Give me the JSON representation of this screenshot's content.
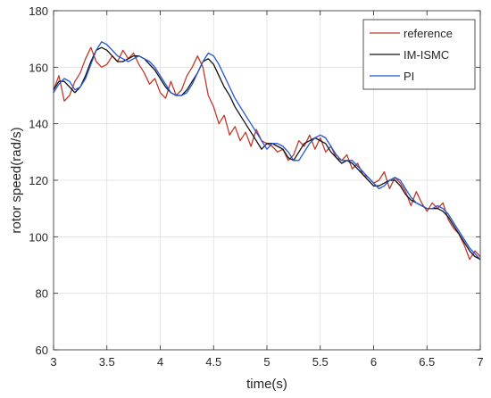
{
  "chart_data": {
    "type": "line",
    "xlabel": "time(s)",
    "ylabel": "rotor speed(rad/s)",
    "xlim": [
      3,
      7
    ],
    "ylim": [
      60,
      180
    ],
    "xticks": [
      3,
      3.5,
      4,
      4.5,
      5,
      5.5,
      6,
      6.5,
      7
    ],
    "yticks": [
      60,
      80,
      100,
      120,
      140,
      160,
      180
    ],
    "grid": true,
    "legend_position": "top-right",
    "series": [
      {
        "name": "reference",
        "color": "#c0392b",
        "x": [
          3.0,
          3.05,
          3.1,
          3.15,
          3.2,
          3.25,
          3.3,
          3.35,
          3.4,
          3.45,
          3.5,
          3.55,
          3.6,
          3.65,
          3.7,
          3.75,
          3.8,
          3.85,
          3.9,
          3.95,
          4.0,
          4.05,
          4.1,
          4.15,
          4.2,
          4.25,
          4.3,
          4.35,
          4.4,
          4.45,
          4.5,
          4.55,
          4.6,
          4.65,
          4.7,
          4.75,
          4.8,
          4.85,
          4.9,
          4.95,
          5.0,
          5.05,
          5.1,
          5.15,
          5.2,
          5.25,
          5.3,
          5.35,
          5.4,
          5.45,
          5.5,
          5.55,
          5.6,
          5.65,
          5.7,
          5.75,
          5.8,
          5.85,
          5.9,
          5.95,
          6.0,
          6.05,
          6.1,
          6.15,
          6.2,
          6.25,
          6.3,
          6.35,
          6.4,
          6.45,
          6.5,
          6.55,
          6.6,
          6.65,
          6.7,
          6.75,
          6.8,
          6.85,
          6.9,
          6.95,
          7.0
        ],
        "y": [
          152,
          157,
          148,
          150,
          155,
          158,
          163,
          167,
          162,
          160,
          161,
          164,
          162,
          166,
          163,
          165,
          161,
          158,
          154,
          156,
          151,
          149,
          155,
          150,
          152,
          157,
          160,
          164,
          160,
          150,
          146,
          140,
          143,
          136,
          139,
          134,
          137,
          132,
          138,
          134,
          133,
          132,
          130,
          131,
          127,
          129,
          134,
          132,
          136,
          131,
          135,
          130,
          132,
          128,
          127,
          129,
          124,
          126,
          122,
          121,
          119,
          120,
          123,
          117,
          121,
          119,
          116,
          111,
          116,
          112,
          109,
          112,
          110,
          112,
          106,
          103,
          101,
          97,
          92,
          95,
          93
        ]
      },
      {
        "name": "IM-ISMC",
        "color": "#111111",
        "x": [
          3.0,
          3.05,
          3.1,
          3.15,
          3.2,
          3.25,
          3.3,
          3.35,
          3.4,
          3.45,
          3.5,
          3.55,
          3.6,
          3.65,
          3.7,
          3.75,
          3.8,
          3.85,
          3.9,
          3.95,
          4.0,
          4.05,
          4.1,
          4.15,
          4.2,
          4.25,
          4.3,
          4.35,
          4.4,
          4.45,
          4.5,
          4.55,
          4.6,
          4.65,
          4.7,
          4.75,
          4.8,
          4.85,
          4.9,
          4.95,
          5.0,
          5.05,
          5.1,
          5.15,
          5.2,
          5.25,
          5.3,
          5.35,
          5.4,
          5.45,
          5.5,
          5.55,
          5.6,
          5.65,
          5.7,
          5.75,
          5.8,
          5.85,
          5.9,
          5.95,
          6.0,
          6.05,
          6.1,
          6.15,
          6.2,
          6.25,
          6.3,
          6.35,
          6.4,
          6.45,
          6.5,
          6.55,
          6.6,
          6.65,
          6.7,
          6.75,
          6.8,
          6.85,
          6.9,
          6.95,
          7.0
        ],
        "y": [
          152,
          155,
          155,
          153,
          151,
          153,
          157,
          162,
          166,
          167,
          166,
          164,
          162,
          162,
          163,
          164,
          164,
          163,
          161,
          159,
          156,
          153,
          151,
          150,
          150,
          152,
          155,
          158,
          162,
          163,
          161,
          157,
          153,
          150,
          146,
          143,
          140,
          137,
          134,
          131,
          133,
          133,
          132,
          131,
          128,
          127,
          130,
          133,
          134,
          135,
          134,
          133,
          130,
          128,
          126,
          127,
          126,
          124,
          122,
          120,
          118,
          118,
          119,
          120,
          120,
          118,
          115,
          113,
          112,
          111,
          110,
          110,
          110,
          109,
          107,
          104,
          101,
          98,
          95,
          93,
          92
        ]
      },
      {
        "name": "PI",
        "color": "#2255d8",
        "x": [
          3.0,
          3.05,
          3.1,
          3.15,
          3.2,
          3.25,
          3.3,
          3.35,
          3.4,
          3.45,
          3.5,
          3.55,
          3.6,
          3.65,
          3.7,
          3.75,
          3.8,
          3.85,
          3.9,
          3.95,
          4.0,
          4.05,
          4.1,
          4.15,
          4.2,
          4.25,
          4.3,
          4.35,
          4.4,
          4.45,
          4.5,
          4.55,
          4.6,
          4.65,
          4.7,
          4.75,
          4.8,
          4.85,
          4.9,
          4.95,
          5.0,
          5.05,
          5.1,
          5.15,
          5.2,
          5.25,
          5.3,
          5.35,
          5.4,
          5.45,
          5.5,
          5.55,
          5.6,
          5.65,
          5.7,
          5.75,
          5.8,
          5.85,
          5.9,
          5.95,
          6.0,
          6.05,
          6.1,
          6.15,
          6.2,
          6.25,
          6.3,
          6.35,
          6.4,
          6.45,
          6.5,
          6.55,
          6.6,
          6.65,
          6.7,
          6.75,
          6.8,
          6.85,
          6.9,
          6.95,
          7.0
        ],
        "y": [
          151,
          154,
          156,
          155,
          152,
          153,
          156,
          161,
          166,
          169,
          168,
          166,
          164,
          163,
          162,
          163,
          164,
          163,
          162,
          160,
          157,
          154,
          151,
          150,
          150,
          151,
          154,
          158,
          162,
          165,
          164,
          161,
          157,
          153,
          149,
          146,
          143,
          140,
          137,
          134,
          131,
          133,
          133,
          132,
          130,
          127,
          127,
          130,
          133,
          135,
          136,
          135,
          132,
          129,
          127,
          127,
          127,
          125,
          123,
          121,
          119,
          117,
          118,
          120,
          121,
          120,
          117,
          114,
          112,
          111,
          110,
          110,
          111,
          110,
          108,
          105,
          102,
          99,
          96,
          94,
          92
        ]
      }
    ]
  }
}
